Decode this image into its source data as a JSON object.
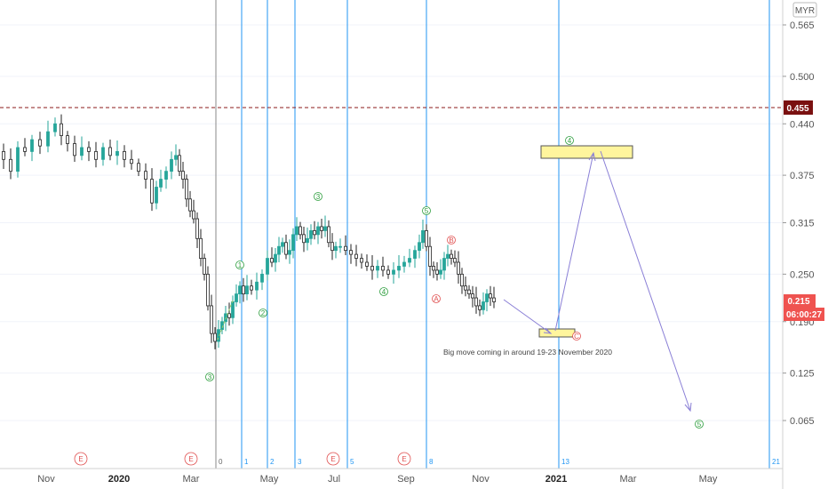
{
  "chart_data": {
    "type": "candlestick",
    "currency": "MYR",
    "ylim": [
      0.02,
      0.62
    ],
    "y_ticks": [
      "0.565",
      "0.500",
      "0.440",
      "0.375",
      "0.315",
      "0.250",
      "0.190",
      "0.125",
      "0.065"
    ],
    "x_labels": [
      "Nov",
      "2020",
      "Mar",
      "May",
      "Jul",
      "Sep",
      "Nov",
      "2021",
      "Mar",
      "May"
    ],
    "x_label_bold": [
      "2020",
      "2021"
    ],
    "resistance_line": {
      "label": "0.455",
      "value": 0.455,
      "color": "#8b1a1a"
    },
    "last_price": {
      "label": "0.215",
      "value": 0.215,
      "color": "#ef5350"
    },
    "countdown": {
      "label": "06:00:27",
      "color": "#ef5350"
    },
    "price_path": [
      [
        0,
        0.405
      ],
      [
        8,
        0.395
      ],
      [
        16,
        0.38
      ],
      [
        24,
        0.41
      ],
      [
        32,
        0.405
      ],
      [
        40,
        0.42
      ],
      [
        50,
        0.412
      ],
      [
        58,
        0.43
      ],
      [
        66,
        0.44
      ],
      [
        72,
        0.425
      ],
      [
        80,
        0.415
      ],
      [
        88,
        0.4
      ],
      [
        96,
        0.41
      ],
      [
        104,
        0.405
      ],
      [
        112,
        0.395
      ],
      [
        120,
        0.41
      ],
      [
        128,
        0.4
      ],
      [
        136,
        0.405
      ],
      [
        144,
        0.395
      ],
      [
        152,
        0.39
      ],
      [
        160,
        0.38
      ],
      [
        168,
        0.37
      ],
      [
        174,
        0.34
      ],
      [
        178,
        0.36
      ],
      [
        184,
        0.37
      ],
      [
        190,
        0.38
      ],
      [
        196,
        0.395
      ],
      [
        200,
        0.4
      ],
      [
        204,
        0.38
      ],
      [
        208,
        0.37
      ],
      [
        212,
        0.345
      ],
      [
        216,
        0.33
      ],
      [
        220,
        0.32
      ],
      [
        224,
        0.295
      ],
      [
        228,
        0.27
      ],
      [
        232,
        0.25
      ],
      [
        236,
        0.21
      ],
      [
        240,
        0.175
      ],
      [
        244,
        0.165
      ],
      [
        248,
        0.18
      ],
      [
        252,
        0.19
      ],
      [
        256,
        0.2
      ],
      [
        260,
        0.195
      ],
      [
        264,
        0.215
      ],
      [
        268,
        0.225
      ],
      [
        272,
        0.235
      ],
      [
        276,
        0.225
      ],
      [
        280,
        0.235
      ],
      [
        286,
        0.23
      ],
      [
        292,
        0.24
      ],
      [
        298,
        0.25
      ],
      [
        304,
        0.27
      ],
      [
        308,
        0.265
      ],
      [
        312,
        0.275
      ],
      [
        316,
        0.285
      ],
      [
        320,
        0.29
      ],
      [
        324,
        0.275
      ],
      [
        328,
        0.28
      ],
      [
        332,
        0.3
      ],
      [
        336,
        0.31
      ],
      [
        340,
        0.3
      ],
      [
        344,
        0.29
      ],
      [
        348,
        0.295
      ],
      [
        352,
        0.305
      ],
      [
        356,
        0.3
      ],
      [
        360,
        0.31
      ],
      [
        364,
        0.305
      ],
      [
        368,
        0.31
      ],
      [
        372,
        0.29
      ],
      [
        376,
        0.28
      ],
      [
        380,
        0.285
      ],
      [
        386,
        0.285
      ],
      [
        392,
        0.28
      ],
      [
        398,
        0.275
      ],
      [
        404,
        0.27
      ],
      [
        410,
        0.265
      ],
      [
        416,
        0.26
      ],
      [
        422,
        0.255
      ],
      [
        428,
        0.26
      ],
      [
        434,
        0.255
      ],
      [
        440,
        0.25
      ],
      [
        446,
        0.255
      ],
      [
        452,
        0.26
      ],
      [
        458,
        0.265
      ],
      [
        464,
        0.27
      ],
      [
        470,
        0.28
      ],
      [
        474,
        0.29
      ],
      [
        478,
        0.305
      ],
      [
        482,
        0.285
      ],
      [
        486,
        0.26
      ],
      [
        490,
        0.255
      ],
      [
        494,
        0.25
      ],
      [
        498,
        0.255
      ],
      [
        502,
        0.27
      ],
      [
        506,
        0.275
      ],
      [
        510,
        0.27
      ],
      [
        514,
        0.265
      ],
      [
        518,
        0.25
      ],
      [
        522,
        0.235
      ],
      [
        526,
        0.23
      ],
      [
        530,
        0.225
      ],
      [
        534,
        0.22
      ],
      [
        538,
        0.21
      ],
      [
        542,
        0.205
      ],
      [
        546,
        0.215
      ],
      [
        550,
        0.225
      ],
      [
        554,
        0.22
      ],
      [
        558,
        0.215
      ]
    ],
    "fib_time_lines": [
      "0",
      "1",
      "2",
      "3",
      "5",
      "8",
      "13",
      "21"
    ],
    "wave_labels_green": [
      "3",
      "1",
      "2",
      "3",
      "4",
      "5",
      "4",
      "5"
    ],
    "wave_labels_red": [
      "A",
      "B",
      "C"
    ],
    "event_markers": [
      "E",
      "E",
      "E",
      "E"
    ],
    "annotation": "Big move coming  in around 19-23 November 2020",
    "target_boxes": [
      "4",
      "C"
    ]
  },
  "toolbar": {
    "currency": "MYR"
  }
}
